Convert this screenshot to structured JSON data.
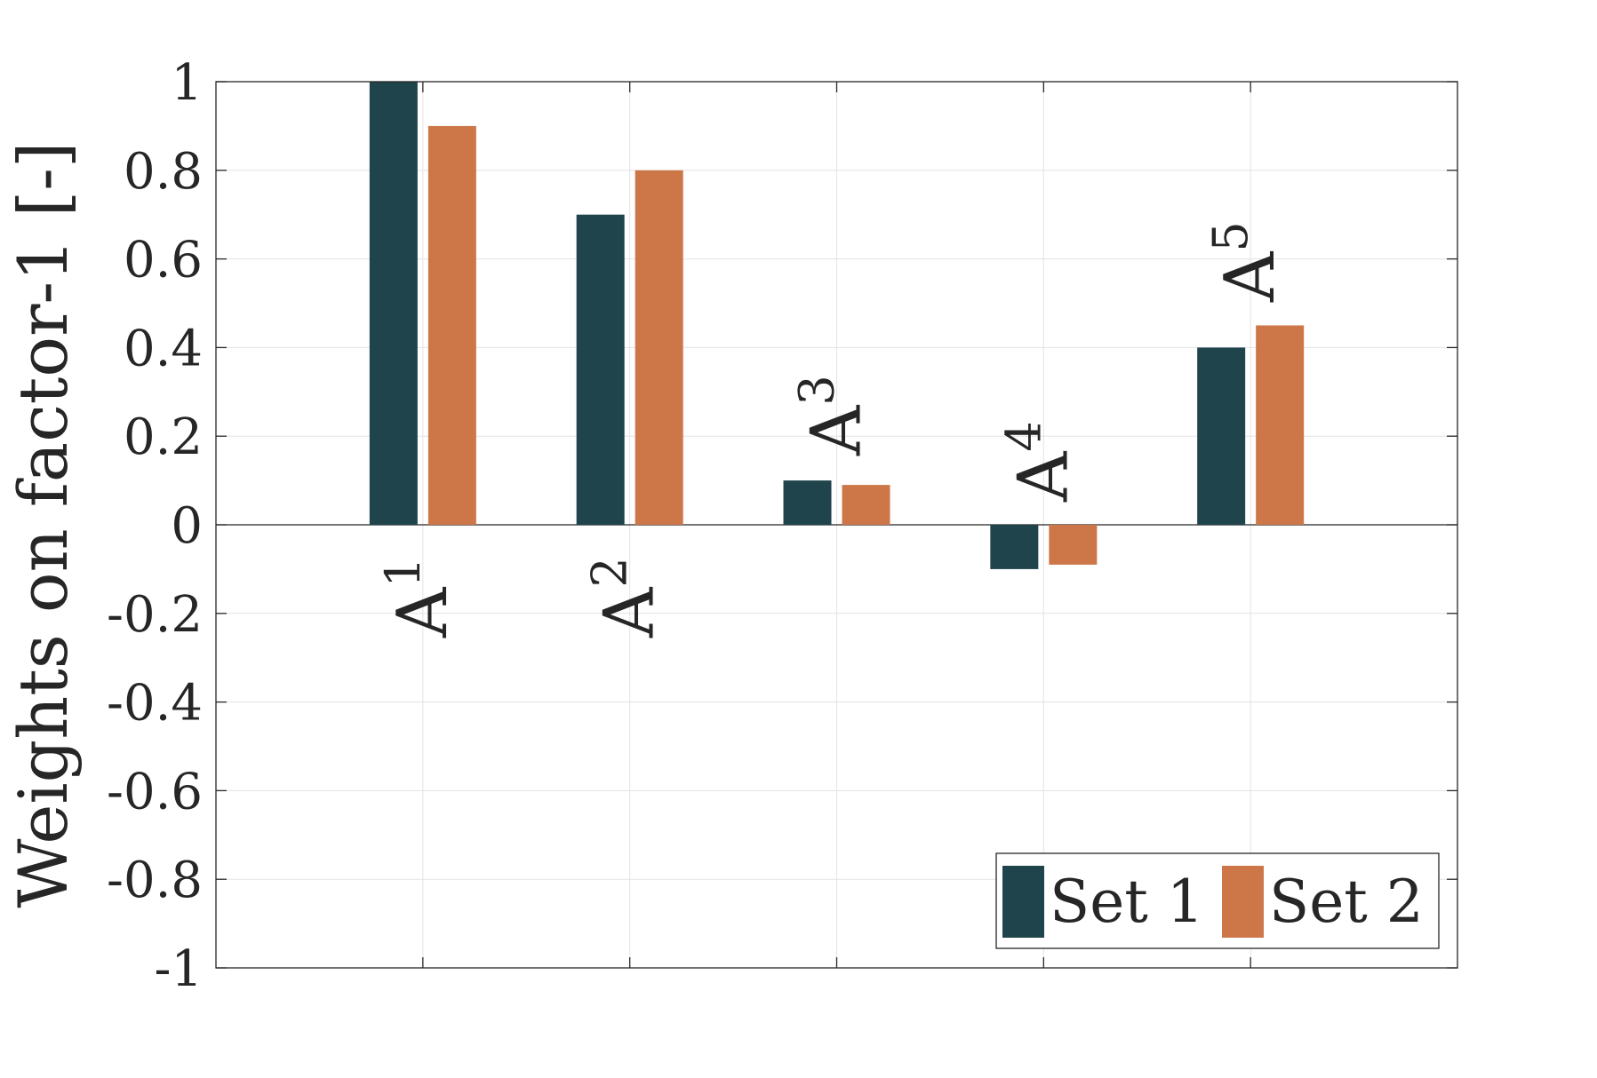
{
  "chart_data": {
    "type": "bar",
    "title": "",
    "xlabel": "",
    "ylabel": "Weights on factor-1 [-]",
    "ylim": [
      -1,
      1
    ],
    "yticks": [
      -1,
      -0.8,
      -0.6,
      -0.4,
      -0.2,
      0,
      0.2,
      0.4,
      0.6,
      0.8,
      1
    ],
    "ytick_labels": [
      "-1",
      "-0.8",
      "-0.6",
      "-0.4",
      "-0.2",
      "0",
      "0.2",
      "0.4",
      "0.6",
      "0.8",
      "1"
    ],
    "grid": true,
    "legend_position": "bottom-right",
    "legend_orientation": "horizontal",
    "categories": [
      {
        "base": "A",
        "sub": "1"
      },
      {
        "base": "A",
        "sub": "2"
      },
      {
        "base": "A",
        "sub": "3"
      },
      {
        "base": "A",
        "sub": "4"
      },
      {
        "base": "A",
        "sub": "5"
      }
    ],
    "series": [
      {
        "name": "Set 1",
        "color": "#1f444c",
        "values": [
          1.0,
          0.7,
          0.1,
          -0.1,
          0.4
        ]
      },
      {
        "name": "Set 2",
        "color": "#cd7749",
        "values": [
          0.9,
          0.8,
          0.09,
          -0.09,
          0.45
        ]
      }
    ],
    "label_rotation": "vertical (reads bottom-to-top)",
    "label_placement": "above positive bars, below negative bars; A1 and A2 below the zero line"
  }
}
